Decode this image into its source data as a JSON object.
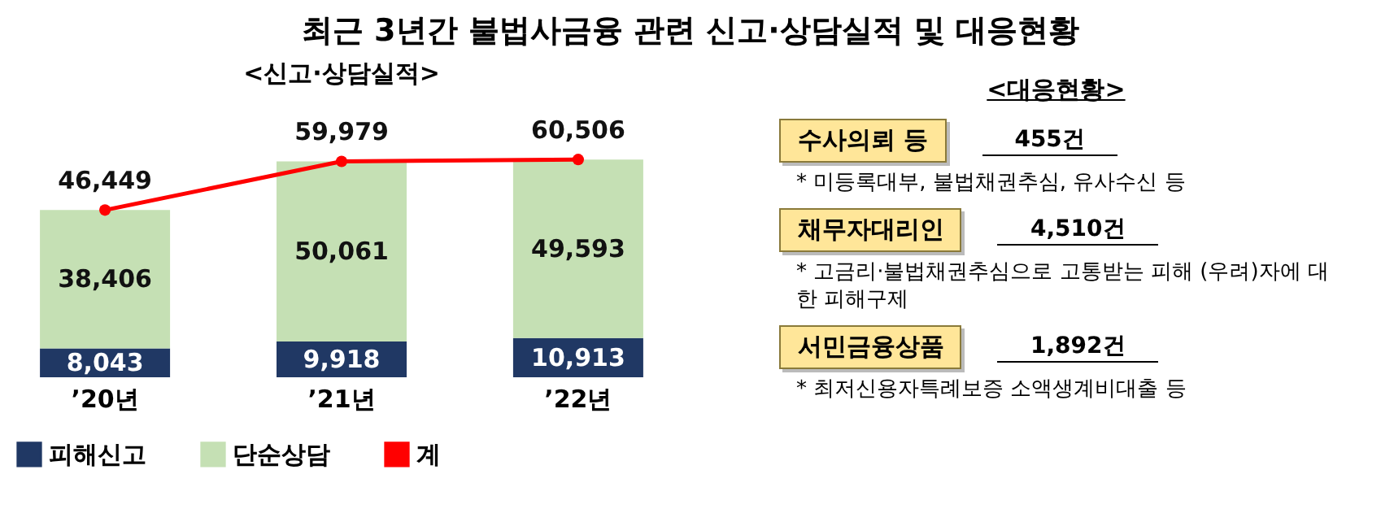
{
  "chart_data": [
    {
      "type": "bar",
      "title": "최근 3년간 불법사금융 관련 신고·상담실적 및 대응현황",
      "subtitle": "<신고·상담실적>",
      "categories": [
        "’20년",
        "’21년",
        "’22년"
      ],
      "stacked": true,
      "legend": "bottom",
      "marker": "circle",
      "series": [
        {
          "name": "피해신고",
          "color": "#203864",
          "values": [
            8043,
            9918,
            10913
          ],
          "value_labels": [
            "8,043",
            "9,918",
            "10,913"
          ]
        },
        {
          "name": "단순상담",
          "color": "#c5e0b4",
          "values": [
            38406,
            50061,
            49593
          ],
          "value_labels": [
            "38,406",
            "50,061",
            "49,593"
          ]
        },
        {
          "name": "계",
          "type": "line",
          "color": "#ff0000",
          "values": [
            46449,
            59979,
            60506
          ],
          "value_labels": [
            "46,449",
            "59,979",
            "60,506"
          ]
        }
      ]
    },
    {
      "type": "other",
      "title": "<대응현황>",
      "annotations": [
        "수사의뢰 등",
        "455건",
        "* 미등록대부, 불법채권추심, 유사수신 등",
        "채무자대리인",
        "4,510건",
        "* 고금리·불법채권추심으로 고통받는 피해 (우려)자에 대한 피해구제",
        "서민금융상품",
        "1,892건",
        "* 최저신용자특례보증 소액생계비대출 등"
      ]
    }
  ]
}
